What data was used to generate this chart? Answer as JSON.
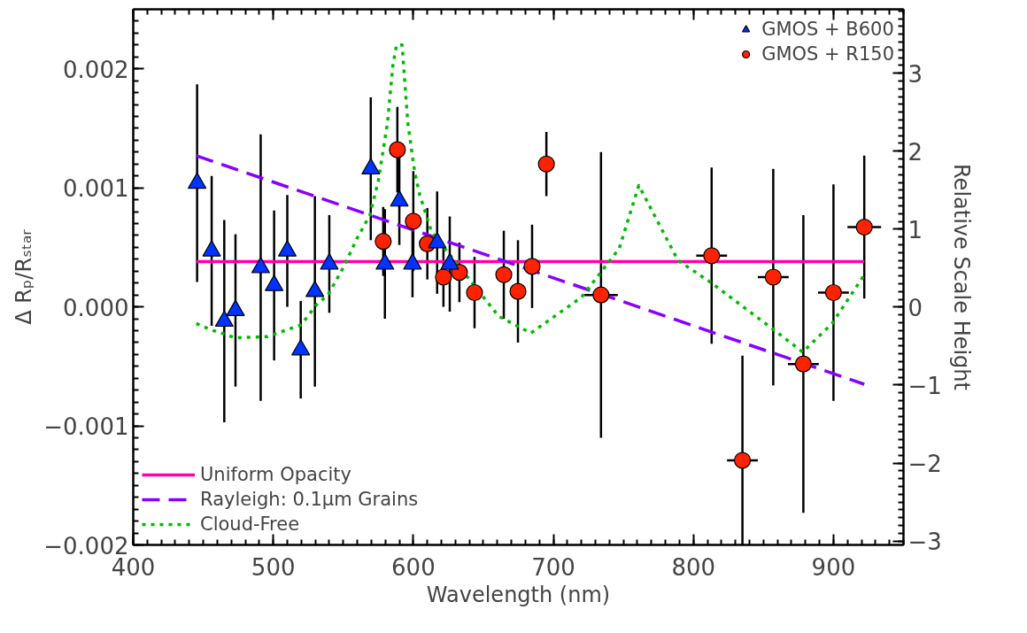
{
  "chart_data": {
    "type": "scatter",
    "xlabel": "Wavelength (nm)",
    "ylabel": "Δ Rₚ/Rₛₜₐᵣ",
    "y2label": "Relative Scale Height",
    "xlim": [
      400,
      950
    ],
    "xticks": [
      400,
      500,
      600,
      700,
      800,
      900
    ],
    "ylim": [
      -0.002,
      0.0025
    ],
    "yticks": [
      {
        "value": -0.002,
        "label": "−0.002"
      },
      {
        "value": -0.001,
        "label": "−0.001"
      },
      {
        "value": 0,
        "label": "0.000"
      },
      {
        "value": 0.001,
        "label": "0.001"
      },
      {
        "value": 0.002,
        "label": "0.002"
      }
    ],
    "y2lim": [
      -3.05,
      3.82
    ],
    "y2ticks": [
      {
        "value": -3,
        "label": "−3"
      },
      {
        "value": -2,
        "label": "−2"
      },
      {
        "value": -1,
        "label": "−1"
      },
      0,
      1,
      2,
      3
    ],
    "grid": false,
    "legend": "top right",
    "series": [
      {
        "name": "GMOS + B600",
        "marker": "triangle",
        "color": "#0033ff",
        "x": [
          445.6,
          456,
          465,
          473,
          491,
          500.6,
          510,
          519.6,
          529.7,
          540,
          569.6,
          579.7,
          590,
          599.4,
          617,
          626
        ],
        "values": [
          0.00104,
          0.00047,
          -0.00012,
          -3e-05,
          0.00033,
          0.00018,
          0.00047,
          -0.00036,
          0.00013,
          0.00036,
          0.00116,
          0.00036,
          0.00089,
          0.00036,
          0.00054,
          0.00036
        ],
        "errors": [
          0.00083,
          0.00063,
          0.00085,
          0.00064,
          0.00112,
          0.00063,
          0.00047,
          0.00041,
          0.0008,
          0.00041,
          0.0006,
          0.00046,
          0.00037,
          0.00028,
          0.00043,
          0.0004
        ]
      },
      {
        "name": "GMOS + R150",
        "marker": "circle",
        "color": "#ff2200",
        "x": [
          578.5,
          588.6,
          600,
          610,
          621.5,
          632.9,
          643.7,
          664.6,
          674.7,
          684.8,
          695,
          734,
          813,
          835,
          857,
          878.5,
          900,
          922
        ],
        "values": [
          0.00055,
          0.00132,
          0.00072,
          0.00053,
          0.00025,
          0.00029,
          0.00012,
          0.00027,
          0.00013,
          0.00034,
          0.0012,
          0.0001,
          0.00043,
          -0.00129,
          0.00025,
          -0.00048,
          0.00012,
          0.00067
        ],
        "errors": [
          0.00029,
          0.00036,
          0.00042,
          0.0003,
          0.00025,
          0.00025,
          0.0003,
          0.00037,
          0.00043,
          0.00035,
          0.00027,
          0.0012,
          0.00074,
          [
            -0.002,
            -0.00041
          ],
          0.00091,
          0.00125,
          0.00091,
          0.0006
        ],
        "xerrors": [
          null,
          null,
          null,
          null,
          null,
          null,
          null,
          null,
          null,
          null,
          null,
          12,
          11,
          11,
          11,
          11,
          11,
          12
        ]
      },
      {
        "name": "Uniform Opacity",
        "type": "line",
        "line_style": "solid",
        "color": "#ff00aa",
        "x": [
          445,
          922
        ],
        "values": [
          0.00038,
          0.00038
        ]
      },
      {
        "name": "Rayleigh: 0.1μm Grains",
        "type": "line",
        "line_style": "dashed",
        "color": "#8800ff",
        "x": [
          445,
          922
        ],
        "values": [
          0.00127,
          -0.00065
        ]
      },
      {
        "name": "Cloud-Free",
        "type": "line",
        "line_style": "dotted",
        "color": "#00bb00",
        "x": [
          445,
          455,
          473,
          496,
          520,
          531,
          539,
          550,
          560,
          569,
          575,
          581.6,
          585.4,
          588,
          592,
          596,
          601,
          604.6,
          613,
          661,
          684,
          720,
          747,
          761,
          789,
          813,
          856,
          878,
          899,
          921.5
        ],
        "values": [
          -0.00014,
          -0.00019,
          -0.00026,
          -0.00025,
          -0.00015,
          2e-05,
          0.0001,
          0.00033,
          0.00058,
          0.00077,
          0.00106,
          0.00155,
          0.00203,
          0.0022,
          0.0022,
          0.00155,
          0.00113,
          0.00094,
          0.00063,
          -8e-05,
          -0.00022,
          8e-05,
          0.00049,
          0.00102,
          0.00039,
          0.0002,
          -0.00018,
          -0.00038,
          -0.00014,
          0.00026
        ]
      }
    ]
  }
}
